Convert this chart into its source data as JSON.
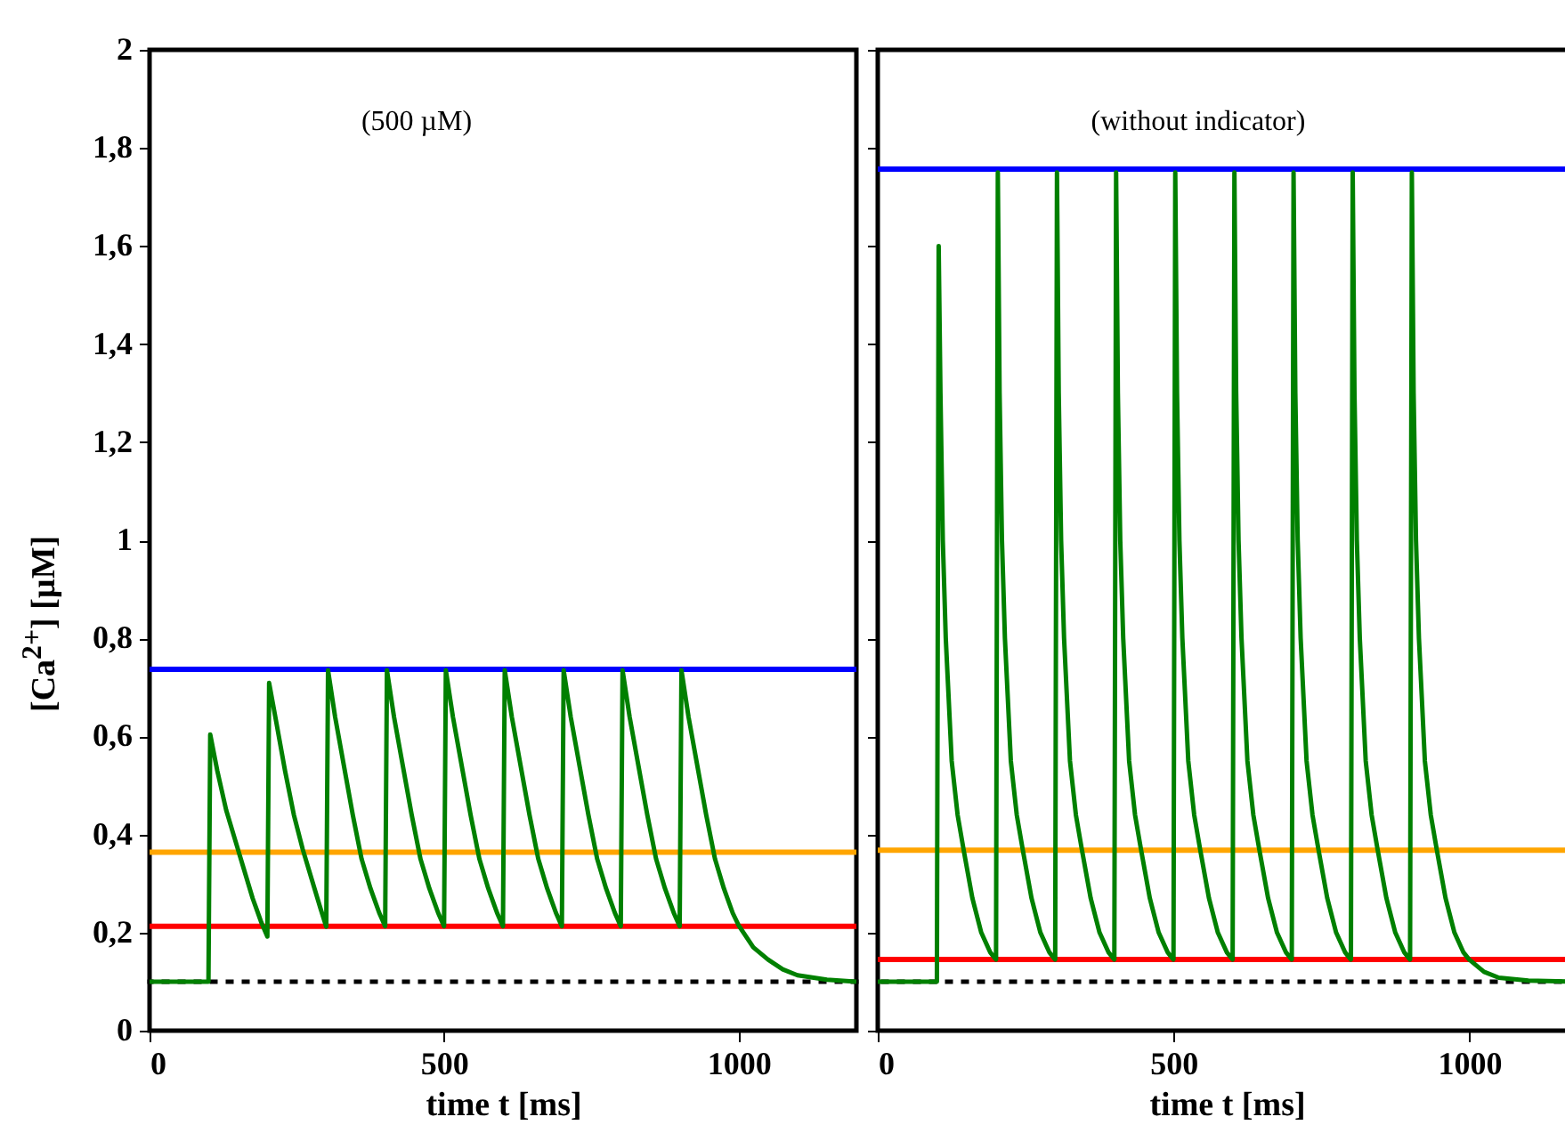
{
  "chart_data": [
    {
      "type": "line",
      "annotations": [
        "(500 µM)"
      ],
      "xlabel": "time t [ms]",
      "ylabel": "[Ca$^{2+}$] [µM]",
      "xlim": [
        0,
        1200
      ],
      "xticks": [
        0,
        500,
        1000
      ],
      "ylim": [
        0,
        2
      ],
      "yticks": [
        0,
        {
          "value": 0.2,
          "label": "0,2"
        },
        {
          "value": 0.4,
          "label": "0,4"
        },
        {
          "value": 0.6,
          "label": "0,6"
        },
        {
          "value": 0.8,
          "label": "0,8"
        },
        1,
        {
          "value": 1.2,
          "label": "1,2"
        },
        {
          "value": 1.4,
          "label": "1,4"
        },
        {
          "value": 1.6,
          "label": "1,6"
        },
        {
          "value": 1.8,
          "label": "1,8"
        },
        2
      ],
      "series": [
        {
          "color": "#008000",
          "x": [
            0,
            100,
            103,
            115,
            130,
            145,
            160,
            175,
            190,
            200,
            203,
            215,
            230,
            245,
            260,
            275,
            290,
            300,
            303,
            315,
            330,
            345,
            360,
            375,
            390,
            400,
            403,
            415,
            430,
            445,
            460,
            475,
            490,
            500,
            503,
            515,
            530,
            545,
            560,
            575,
            590,
            600,
            603,
            615,
            630,
            645,
            660,
            675,
            690,
            700,
            703,
            715,
            730,
            745,
            760,
            775,
            790,
            800,
            803,
            815,
            830,
            845,
            860,
            875,
            890,
            900,
            903,
            915,
            930,
            945,
            960,
            975,
            990,
            1000,
            1025,
            1050,
            1075,
            1100,
            1150,
            1200
          ],
          "values": [
            0.1,
            0.1,
            0.604,
            0.53,
            0.45,
            0.39,
            0.33,
            0.27,
            0.22,
            0.192,
            0.709,
            0.63,
            0.53,
            0.44,
            0.37,
            0.31,
            0.25,
            0.212,
            0.735,
            0.64,
            0.54,
            0.44,
            0.35,
            0.29,
            0.24,
            0.213,
            0.735,
            0.64,
            0.54,
            0.44,
            0.35,
            0.29,
            0.24,
            0.213,
            0.735,
            0.64,
            0.54,
            0.44,
            0.35,
            0.29,
            0.24,
            0.213,
            0.735,
            0.64,
            0.54,
            0.44,
            0.35,
            0.29,
            0.24,
            0.213,
            0.735,
            0.64,
            0.54,
            0.44,
            0.35,
            0.29,
            0.24,
            0.213,
            0.735,
            0.64,
            0.54,
            0.44,
            0.35,
            0.29,
            0.24,
            0.213,
            0.735,
            0.64,
            0.54,
            0.44,
            0.35,
            0.29,
            0.24,
            0.215,
            0.17,
            0.145,
            0.125,
            0.113,
            0.104,
            0.1
          ]
        }
      ],
      "ref_lines": [
        {
          "axis": "y",
          "value": 0.737,
          "color": "#0000ff"
        },
        {
          "axis": "y",
          "value": 0.364,
          "color": "#ffa500"
        },
        {
          "axis": "y",
          "value": 0.213,
          "color": "#ff0000"
        },
        {
          "axis": "y",
          "value": 0.1,
          "color": "#000000",
          "line_style": "dotted"
        }
      ]
    },
    {
      "type": "line",
      "annotations": [
        "(without indicator)"
      ],
      "xlabel": "time t [ms]",
      "tick_labels": "x",
      "xlim": [
        0,
        1180
      ],
      "xticks": [
        0,
        500,
        1000
      ],
      "ylim": [
        0,
        2
      ],
      "yticks": [
        0,
        0.2,
        0.4,
        0.6,
        0.8,
        1,
        1.2,
        1.4,
        1.6,
        1.8,
        2
      ],
      "series": [
        {
          "color": "#008000",
          "x": [
            0,
            100,
            103,
            106,
            110,
            115,
            125,
            135,
            145,
            160,
            175,
            190,
            200,
            203,
            206,
            210,
            215,
            225,
            235,
            245,
            260,
            275,
            290,
            300,
            303,
            306,
            310,
            315,
            325,
            335,
            345,
            360,
            375,
            390,
            400,
            403,
            406,
            410,
            415,
            425,
            435,
            445,
            460,
            475,
            490,
            500,
            503,
            506,
            510,
            515,
            525,
            535,
            545,
            560,
            575,
            590,
            600,
            603,
            606,
            610,
            615,
            625,
            635,
            645,
            660,
            675,
            690,
            700,
            703,
            706,
            710,
            715,
            725,
            735,
            745,
            760,
            775,
            790,
            800,
            803,
            806,
            810,
            815,
            825,
            835,
            845,
            860,
            875,
            890,
            900,
            903,
            906,
            910,
            915,
            925,
            935,
            945,
            960,
            975,
            990,
            1000,
            1025,
            1050,
            1100,
            1180
          ],
          "values": [
            0.1,
            0.1,
            1.6,
            1.3,
            1.0,
            0.8,
            0.55,
            0.44,
            0.37,
            0.27,
            0.2,
            0.16,
            0.145,
            1.75,
            1.3,
            1.0,
            0.8,
            0.55,
            0.44,
            0.37,
            0.27,
            0.2,
            0.16,
            0.145,
            1.75,
            1.3,
            1.0,
            0.8,
            0.55,
            0.44,
            0.37,
            0.27,
            0.2,
            0.16,
            0.145,
            1.75,
            1.3,
            1.0,
            0.8,
            0.55,
            0.44,
            0.37,
            0.27,
            0.2,
            0.16,
            0.145,
            1.75,
            1.3,
            1.0,
            0.8,
            0.55,
            0.44,
            0.37,
            0.27,
            0.2,
            0.16,
            0.145,
            1.75,
            1.3,
            1.0,
            0.8,
            0.55,
            0.44,
            0.37,
            0.27,
            0.2,
            0.16,
            0.145,
            1.75,
            1.3,
            1.0,
            0.8,
            0.55,
            0.44,
            0.37,
            0.27,
            0.2,
            0.16,
            0.145,
            1.75,
            1.3,
            1.0,
            0.8,
            0.55,
            0.44,
            0.37,
            0.27,
            0.2,
            0.16,
            0.145,
            1.75,
            1.3,
            1.0,
            0.8,
            0.55,
            0.44,
            0.37,
            0.27,
            0.2,
            0.16,
            0.145,
            0.12,
            0.108,
            0.102,
            0.1
          ]
        }
      ],
      "ref_lines": [
        {
          "axis": "y",
          "value": 1.757,
          "color": "#0000ff"
        },
        {
          "axis": "y",
          "value": 0.368,
          "color": "#ffa500"
        },
        {
          "axis": "y",
          "value": 0.145,
          "color": "#ff0000"
        },
        {
          "axis": "y",
          "value": 0.1,
          "color": "#000000",
          "line_style": "dotted"
        }
      ]
    }
  ]
}
